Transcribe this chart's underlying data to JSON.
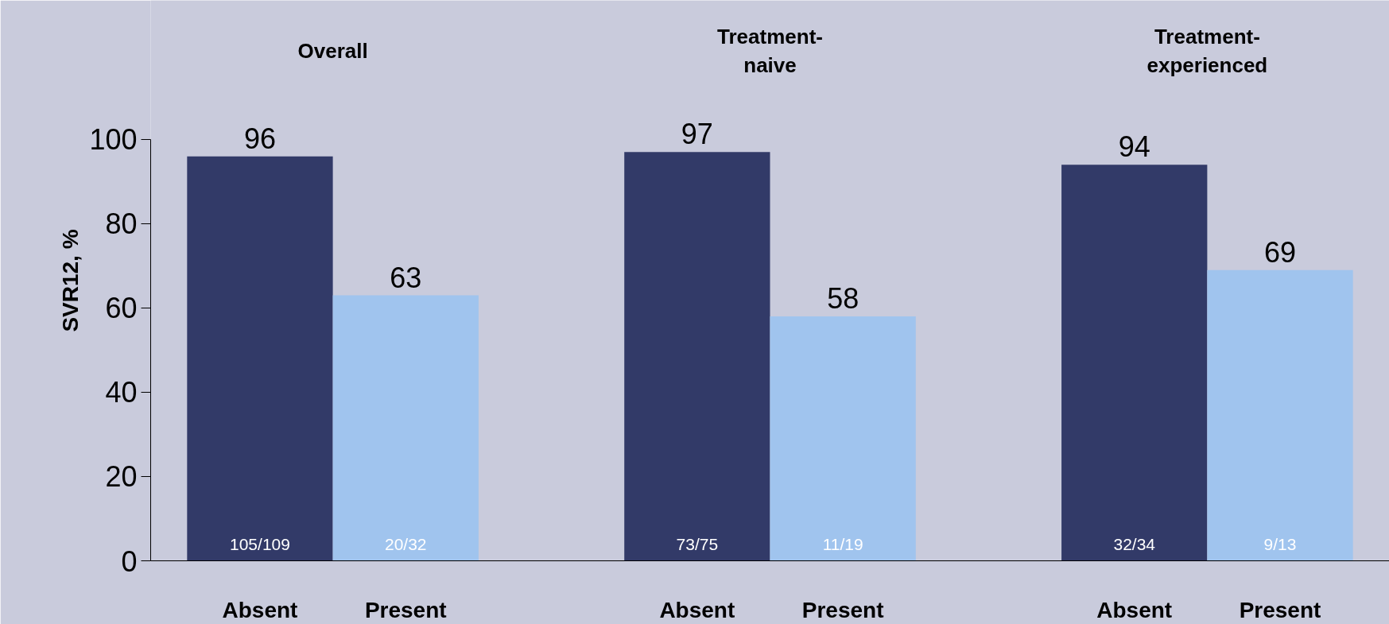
{
  "chart_data": {
    "type": "bar",
    "ylabel": "SVR12, %",
    "categories": [
      "Absent",
      "Present",
      null,
      "Absent",
      "Present",
      null,
      "Absent",
      "Present"
    ],
    "values": [
      96,
      63,
      null,
      97,
      58,
      null,
      94,
      69
    ],
    "colors": [
      "#323a68",
      "#a0c4ee",
      "#c9cbdc",
      "#323a68",
      "#a0c4ee",
      "#c9cbdc",
      "#323a68",
      "#a0c4ee"
    ],
    "ylim": [
      0,
      100
    ],
    "yticks": [
      0,
      20,
      40,
      60,
      80,
      100
    ],
    "data_labels": true,
    "annotations": [
      "Overall",
      "Treatment-naive",
      "Treatment-experienced",
      "105/109",
      "20/32",
      "73/75",
      "11/19",
      "32/34",
      "9/13"
    ]
  }
}
